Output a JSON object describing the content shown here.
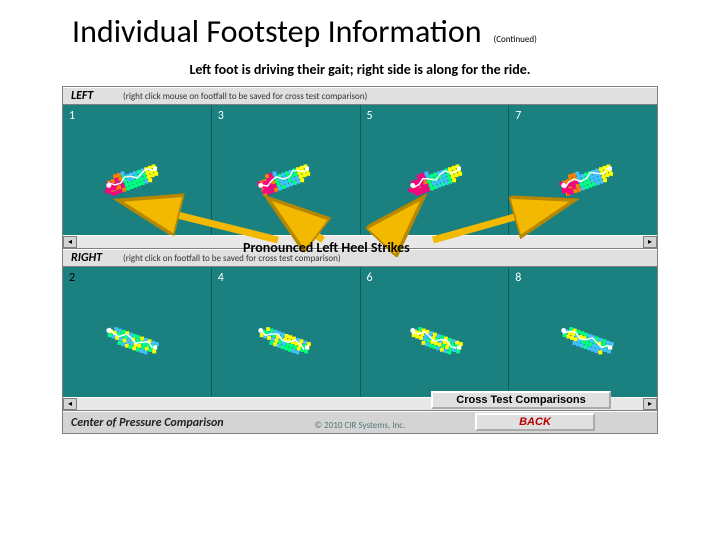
{
  "title": "Individual Footstep Information",
  "continued": "(Continued)",
  "subtitle": "Left foot is driving their gait; right side is along for the ride.",
  "colors": {
    "panel_bg": "#1a8080",
    "app_chrome": "#c0c0c0",
    "heat_palette": [
      "#ffffff",
      "#a0e0ff",
      "#40c0ff",
      "#00ff80",
      "#ffff00",
      "#ff8000",
      "#ff0080"
    ],
    "cop_line": "#ffffff",
    "arrow_fill": "#f2b900",
    "arrow_stroke": "#b88700"
  },
  "left": {
    "label": "LEFT",
    "hint": "(right click mouse on footfall to be saved for cross test comparison)",
    "steps": [
      "1",
      "3",
      "5",
      "7"
    ]
  },
  "right": {
    "label": "RIGHT",
    "hint": "(right click on footfall to be saved for cross test comparison)",
    "steps": [
      "2",
      "4",
      "6",
      "8"
    ]
  },
  "annotation": "Pronounced Left Heel Strikes",
  "buttons": {
    "cross": "Cross Test Comparisons",
    "back": "BACK"
  },
  "bottom_label": "Center of Pressure Comparison",
  "copyright": "© 2010 CIR Systems, Inc."
}
